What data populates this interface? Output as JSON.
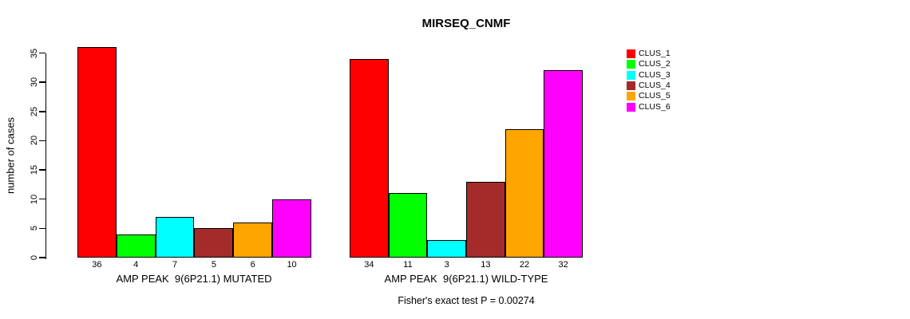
{
  "title": "MIRSEQ_CNMF",
  "ylabel": "number of cases",
  "footer": "Fisher's exact test P = 0.00274",
  "legend": {
    "position": "right",
    "entries": [
      {
        "label": "CLUS_1",
        "color": "#FF0000"
      },
      {
        "label": "CLUS_2",
        "color": "#00FF00"
      },
      {
        "label": "CLUS_3",
        "color": "#00FFFF"
      },
      {
        "label": "CLUS_4",
        "color": "#A52A2A"
      },
      {
        "label": "CLUS_5",
        "color": "#FFA500"
      },
      {
        "label": "CLUS_6",
        "color": "#FF00FF"
      }
    ]
  },
  "chart_data": [
    {
      "type": "bar",
      "group": "MUTATED",
      "xlabel": "AMP PEAK  9(6P21.1) MUTATED",
      "categories": [
        "CLUS_1",
        "CLUS_2",
        "CLUS_3",
        "CLUS_4",
        "CLUS_5",
        "CLUS_6"
      ],
      "values": [
        36,
        4,
        7,
        5,
        6,
        10
      ],
      "bar_value_labels": [
        "36",
        "4",
        "7",
        "5",
        "6",
        "10"
      ],
      "bar_colors": [
        "#FF0000",
        "#00FF00",
        "#00FFFF",
        "#A52A2A",
        "#FFA500",
        "#FF00FF"
      ],
      "ylabel": "number of cases",
      "ylim": [
        0,
        35
      ],
      "yticks": [
        0,
        5,
        10,
        15,
        20,
        25,
        30,
        35
      ],
      "grid": false,
      "legend_position": "right"
    },
    {
      "type": "bar",
      "group": "WILD-TYPE",
      "xlabel": "AMP PEAK  9(6P21.1) WILD-TYPE",
      "categories": [
        "CLUS_1",
        "CLUS_2",
        "CLUS_3",
        "CLUS_4",
        "CLUS_5",
        "CLUS_6"
      ],
      "values": [
        34,
        11,
        3,
        13,
        22,
        32
      ],
      "bar_value_labels": [
        "34",
        "11",
        "3",
        "13",
        "22",
        "32"
      ],
      "bar_colors": [
        "#FF0000",
        "#00FF00",
        "#00FFFF",
        "#A52A2A",
        "#FFA500",
        "#FF00FF"
      ],
      "ylabel": "number of cases",
      "ylim": [
        0,
        35
      ],
      "yticks": [
        0,
        5,
        10,
        15,
        20,
        25,
        30,
        35
      ],
      "grid": false,
      "legend_position": "right"
    }
  ]
}
